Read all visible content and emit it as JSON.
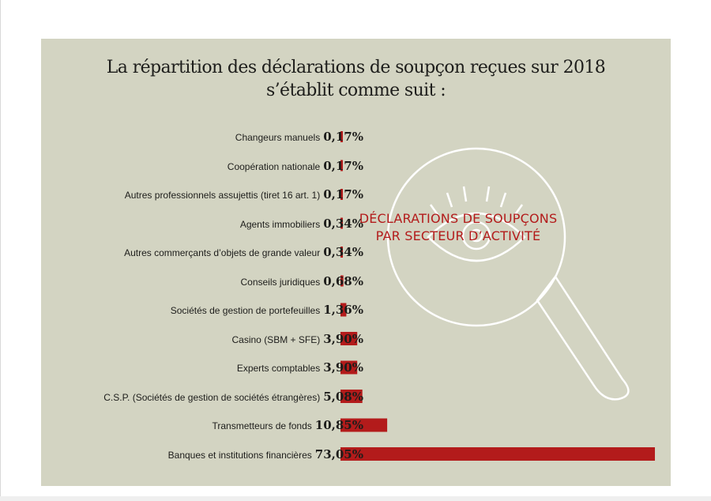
{
  "title": {
    "line1": "La répartition des déclarations de soupçon reçues sur 2018",
    "line2": "s’établit comme suit :"
  },
  "overlay": {
    "line1": "DÉCLARATIONS DE SOUPÇONS",
    "line2": "PAR SECTEUR D’ACTIVITÉ"
  },
  "colors": {
    "bar": "#b31b1b",
    "panel": "#d3d4c2",
    "icon": "#ffffff"
  },
  "icons": [
    "magnifier-icon",
    "eye-icon"
  ],
  "chart_data": {
    "type": "bar",
    "orientation": "horizontal",
    "title": "La répartition des déclarations de soupçon reçues sur 2018 s’établit comme suit :",
    "categories": [
      "Changeurs manuels",
      "Coopération nationale",
      "Autres professionnels assujettis (tiret 16 art. 1)",
      "Agents immobiliers",
      "Autres commerçants d’objets de grande valeur",
      "Conseils juridiques",
      "Sociétés de gestion de portefeuilles",
      "Casino (SBM + SFE)",
      "Experts comptables",
      "C.S.P. (Sociétés de gestion de sociétés étrangères)",
      "Transmetteurs de fonds",
      "Banques et institutions financières"
    ],
    "values": [
      0.17,
      0.17,
      0.17,
      0.34,
      0.34,
      0.68,
      1.36,
      3.9,
      3.9,
      5.08,
      10.85,
      73.05
    ],
    "value_labels": [
      "0,17%",
      "0,17%",
      "0,17%",
      "0,34%",
      "0,34%",
      "0,68%",
      "1,36%",
      "3,90%",
      "3,90%",
      "5,08%",
      "10,85%",
      "73,05%"
    ],
    "xlim": [
      0,
      73.05
    ],
    "unit": "%"
  }
}
